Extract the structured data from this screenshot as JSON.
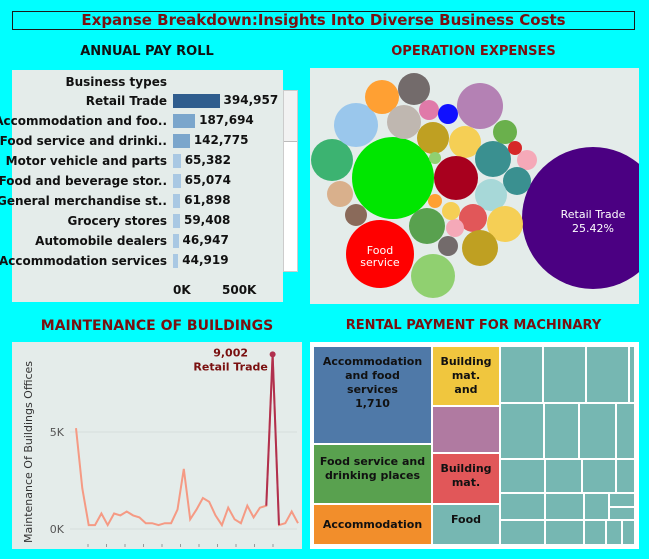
{
  "dashboard_title": "Expanse Breakdown:Insights Into Diverse Business Costs",
  "sections": {
    "payroll": "ANNUAL PAY ROLL",
    "operation": "OPERATION EXPENSES",
    "maintenance": "MAINTENANCE OF BUILDINGS",
    "rental": "RENTAL PAYMENT FOR MACHINARY"
  },
  "colors": {
    "title_text": "#7a1010",
    "bar_top": "#2f5d8e",
    "bar_other": "#7ba6cc",
    "bar_light": "#a9c8e3",
    "line": "#f59a84",
    "line_peak": "#b0304e"
  },
  "chart_data": [
    {
      "type": "bar",
      "orientation": "horizontal",
      "title": "ANNUAL PAY ROLL",
      "header": "Business types",
      "categories": [
        "Retail Trade",
        "Accommodation and foo..",
        "Food service and drinki..",
        "Motor vehicle and parts",
        "Food and beverage stor..",
        "General merchandise st..",
        "Grocery stores",
        "Automobile dealers",
        "Accommodation services"
      ],
      "values": [
        394957,
        187694,
        142775,
        65382,
        65074,
        61898,
        59408,
        46947,
        44919
      ],
      "value_labels": [
        "394,957",
        "187,694",
        "142,775",
        "65,382",
        "65,074",
        "61,898",
        "59,408",
        "46,947",
        "44,919"
      ],
      "x_ticks": [
        "0K",
        "500K"
      ],
      "xlim": [
        0,
        500000
      ]
    },
    {
      "type": "bubble",
      "title": "OPERATION EXPENSES",
      "labeled": [
        {
          "label": "Retail Trade",
          "value_label": "25.42%",
          "color": "#4b0082"
        },
        {
          "label": "Food service",
          "value_label": "",
          "color": "#ff0000"
        }
      ],
      "other_colors": [
        "#00e600",
        "#3cb371",
        "#9ac7ec",
        "#ffa033",
        "#736b6b",
        "#bfb7b0",
        "#e07aa9",
        "#1010ff",
        "#b481b4",
        "#bfa022",
        "#f5cf55",
        "#a8001e",
        "#3a9090",
        "#6ab04c",
        "#d62728",
        "#f5a9b8",
        "#8a6a5a",
        "#d9b08c",
        "#a7d8d8",
        "#3c9a6a"
      ]
    },
    {
      "type": "line",
      "title": "MAINTENANCE OF BUILDINGS",
      "ylabel": "Maintenance Of Buildings Offices",
      "y_ticks": [
        "5K",
        "0K"
      ],
      "ylim": [
        -200,
        9700
      ],
      "values": [
        5200,
        2100,
        200,
        200,
        800,
        200,
        800,
        700,
        900,
        700,
        600,
        300,
        300,
        200,
        300,
        300,
        1000,
        3100,
        500,
        1000,
        1600,
        1400,
        700,
        200,
        1100,
        500,
        300,
        1200,
        600,
        1100,
        1200,
        9002,
        200,
        300,
        900,
        300
      ],
      "annotation": {
        "index": 31,
        "value_label": "9,002",
        "label": "Retail Trade"
      }
    },
    {
      "type": "treemap",
      "title": "RENTAL PAYMENT FOR MACHINARY",
      "labeled": [
        {
          "label": "Accommodation and food services",
          "value_label": "1,710",
          "color": "#4f79a8"
        },
        {
          "label": "Building mat. and",
          "color": "#f0c63e"
        },
        {
          "label": "Food service and drinking places",
          "color": "#59a14f"
        },
        {
          "label": "Building mat.",
          "color": "#e15759"
        },
        {
          "label": "Accommodation",
          "color": "#f28e2b"
        },
        {
          "label": "Food",
          "color": "#76b7b2"
        }
      ],
      "other_colors": [
        "#b07aa1",
        "#76b7b2"
      ]
    }
  ]
}
